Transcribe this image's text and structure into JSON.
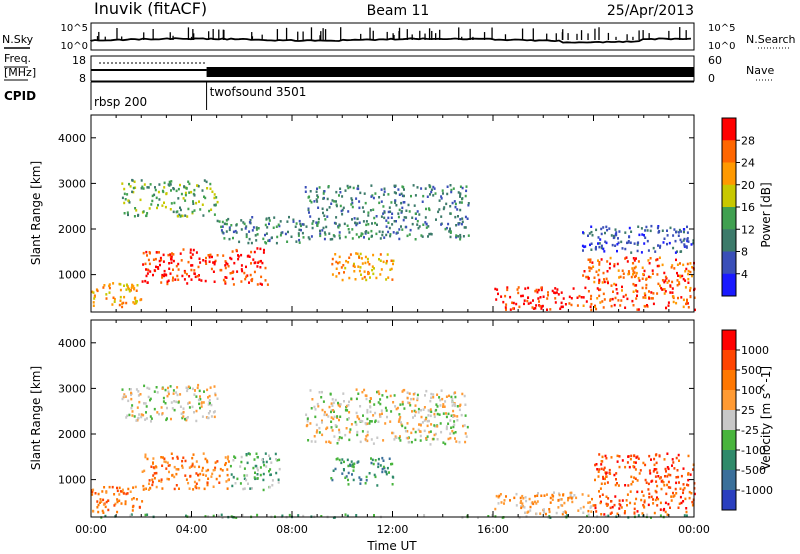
{
  "header": {
    "station": "Inuvik (fitACF)",
    "beam": "Beam 11",
    "date": "25/Apr/2013"
  },
  "left_labels": {
    "nsky": "N.Sky",
    "freq_line1": "Freq.",
    "freq_line2": "[MHz]",
    "cpid": "CPID"
  },
  "right_labels": {
    "nsearch": "N.Search",
    "nave": "Nave"
  },
  "noise_axis": {
    "left_top": "10^5",
    "left_bottom": "10^0",
    "right_top": "10^5",
    "right_bottom": "10^0"
  },
  "freq_axis": {
    "left_top": "18",
    "left_bottom": "8",
    "right_top": "60",
    "right_bottom": "0"
  },
  "cpid_segments": [
    {
      "label": "rbsp 200",
      "start_hour": 0.0,
      "end_hour": 4.6
    },
    {
      "label": "twofsound 3501",
      "start_hour": 4.6,
      "end_hour": 24.0
    }
  ],
  "colors": {
    "power": [
      "#1a1aff",
      "#3a4fb8",
      "#3c7a6a",
      "#40a050",
      "#c8c800",
      "#ff9900",
      "#ff6600",
      "#ff0000"
    ],
    "velocity": [
      "#2a3fbf",
      "#3a6f9a",
      "#2f8a6a",
      "#48b43c",
      "#c8c8c8",
      "#ff9a33",
      "#ff7700",
      "#ff4400",
      "#ff0000"
    ]
  },
  "chart_data": [
    {
      "type": "heatmap",
      "panel": "power",
      "xlabel": "",
      "ylabel": "Slant Range [km]",
      "xlim": [
        0,
        24
      ],
      "ylim": [
        180,
        4500
      ],
      "x_ticks": [
        "00:00",
        "04:00",
        "08:00",
        "12:00",
        "16:00",
        "20:00",
        "00:00"
      ],
      "y_ticks": [
        1000,
        2000,
        3000,
        4000
      ],
      "colorbar_label": "Power [dB]",
      "colorbar_ticks": [
        "4",
        "8",
        "12",
        "16",
        "20",
        "24",
        "28"
      ],
      "regions": [
        {
          "t0": 0.0,
          "t1": 2.0,
          "r0": 300,
          "r1": 900,
          "level": 5
        },
        {
          "t0": 2.0,
          "t1": 7.0,
          "r0": 800,
          "r1": 1600,
          "level": 7
        },
        {
          "t0": 1.2,
          "t1": 5.0,
          "r0": 2300,
          "r1": 3100,
          "level": 3
        },
        {
          "t0": 5.0,
          "t1": 8.5,
          "r0": 1700,
          "r1": 2300,
          "level": 2
        },
        {
          "t0": 8.5,
          "t1": 15.0,
          "r0": 1800,
          "r1": 3000,
          "level": 2
        },
        {
          "t0": 9.5,
          "t1": 12.0,
          "r0": 900,
          "r1": 1500,
          "level": 5
        },
        {
          "t0": 16.0,
          "t1": 19.5,
          "r0": 250,
          "r1": 750,
          "level": 7
        },
        {
          "t0": 19.5,
          "t1": 24.0,
          "r0": 250,
          "r1": 1400,
          "level": 6
        },
        {
          "t0": 19.5,
          "t1": 24.0,
          "r0": 1500,
          "r1": 2100,
          "level": 1
        }
      ]
    },
    {
      "type": "heatmap",
      "panel": "velocity",
      "xlabel": "Time UT",
      "ylabel": "Slant Range [km]",
      "xlim": [
        0,
        24
      ],
      "ylim": [
        180,
        4500
      ],
      "x_ticks": [
        "00:00",
        "04:00",
        "08:00",
        "12:00",
        "16:00",
        "20:00",
        "00:00"
      ],
      "y_ticks": [
        1000,
        2000,
        3000,
        4000
      ],
      "colorbar_label": "Velocity [m s^-1]",
      "colorbar_ticks": [
        "1000",
        "500",
        "100",
        "25",
        "-25",
        "-100",
        "-500",
        "-1000"
      ],
      "regions": [
        {
          "t0": 0.0,
          "t1": 2.0,
          "r0": 300,
          "r1": 900,
          "level": 6
        },
        {
          "t0": 2.0,
          "t1": 5.5,
          "r0": 800,
          "r1": 1600,
          "level": 6
        },
        {
          "t0": 5.5,
          "t1": 7.5,
          "r0": 800,
          "r1": 1600,
          "level": 3
        },
        {
          "t0": 1.2,
          "t1": 5.0,
          "r0": 2300,
          "r1": 3100,
          "level": 4
        },
        {
          "t0": 8.5,
          "t1": 15.0,
          "r0": 1800,
          "r1": 3000,
          "level": 4
        },
        {
          "t0": 9.5,
          "t1": 12.0,
          "r0": 900,
          "r1": 1500,
          "level": 2
        },
        {
          "t0": 16.0,
          "t1": 20.0,
          "r0": 250,
          "r1": 750,
          "level": 5
        },
        {
          "t0": 20.0,
          "t1": 24.0,
          "r0": 250,
          "r1": 1600,
          "level": 7
        },
        {
          "t0": 0.0,
          "t1": 24.0,
          "r0": 190,
          "r1": 260,
          "level": 3
        }
      ]
    }
  ]
}
